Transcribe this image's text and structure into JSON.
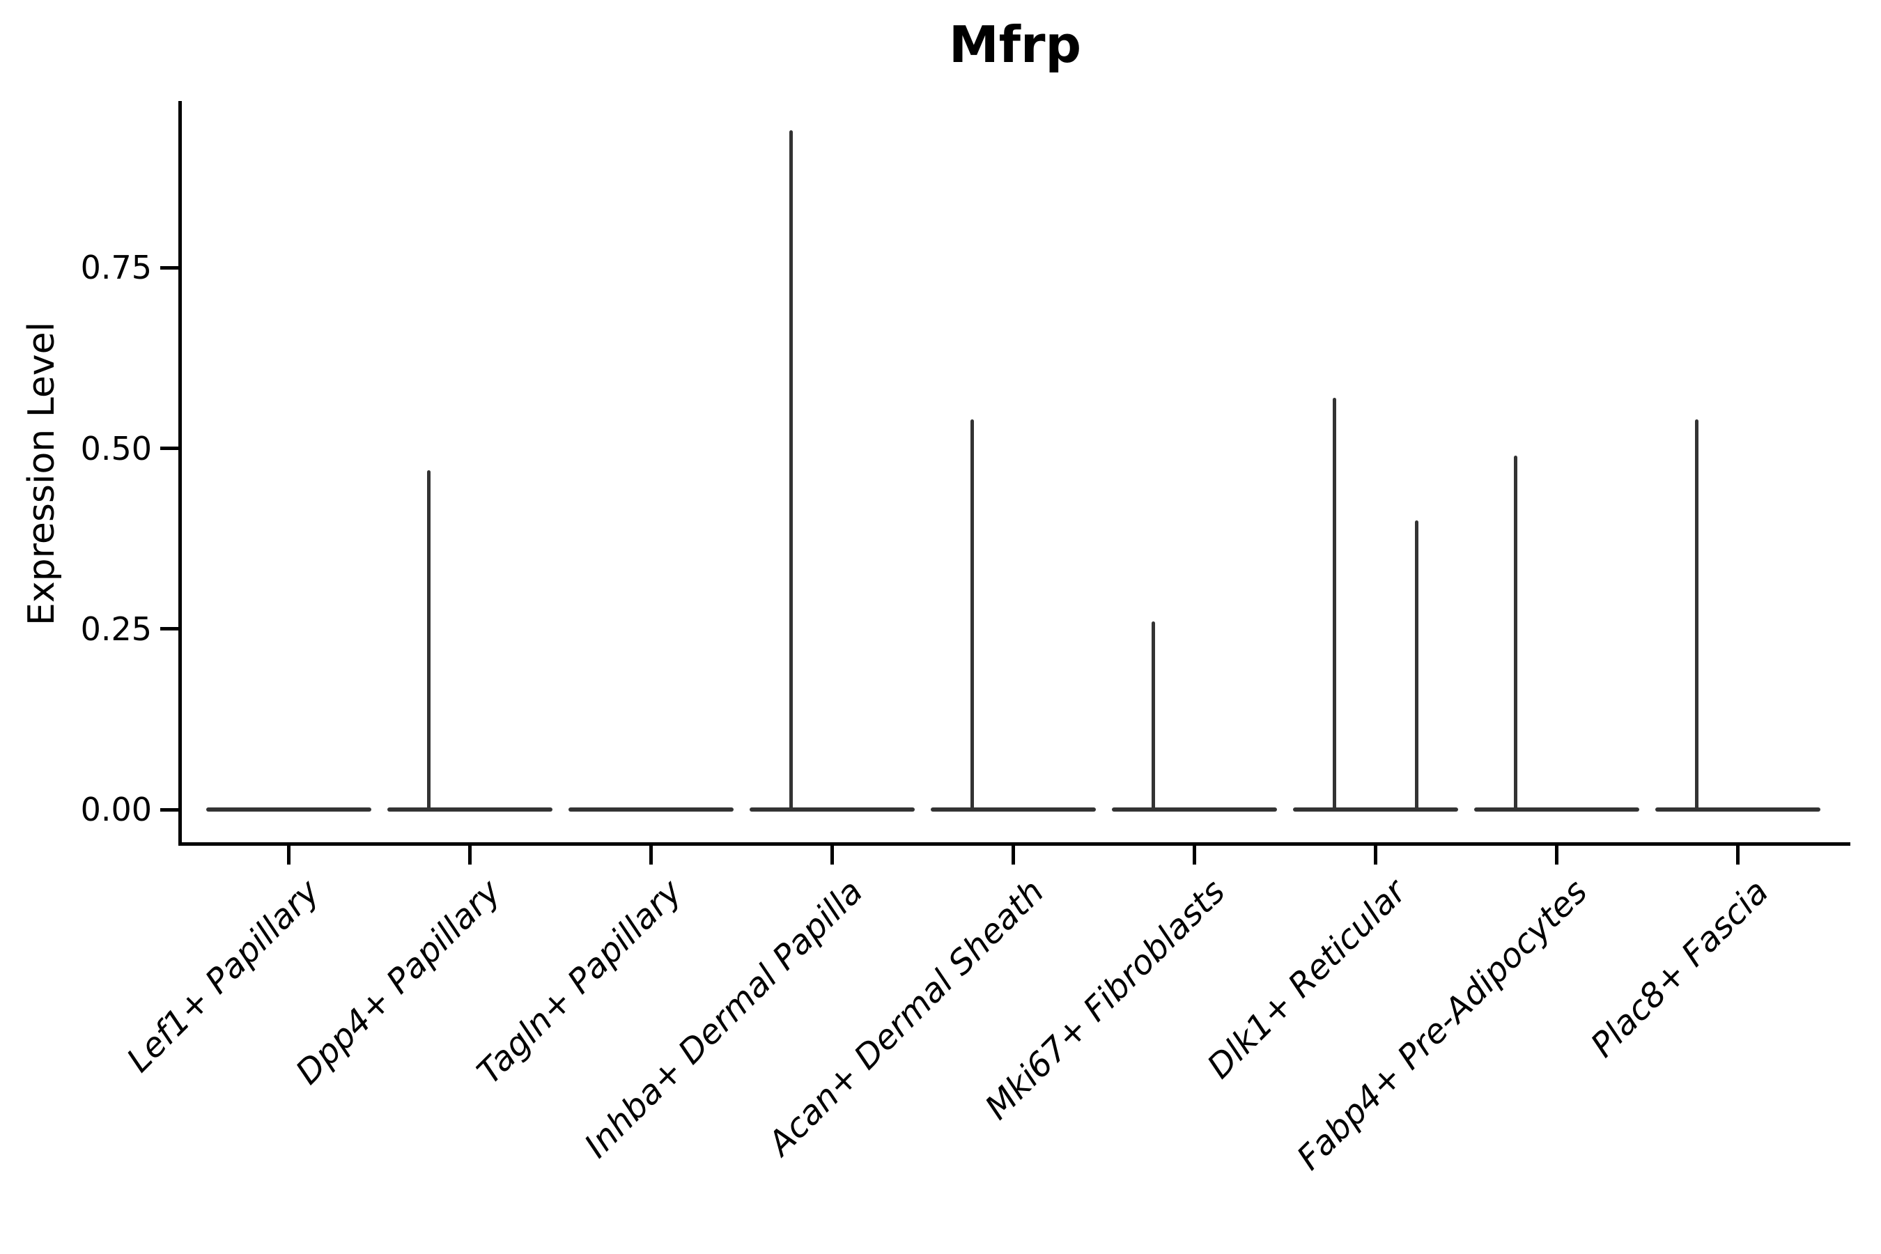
{
  "figure": {
    "title": "Mfrp",
    "y_axis": {
      "label": "Expression Level",
      "tick_labels": [
        "0.00",
        "0.25",
        "0.50",
        "0.75"
      ]
    }
  },
  "chart_data": {
    "type": "violin",
    "title": "Mfrp",
    "xlabel": "",
    "ylabel": "Expression Level",
    "ylim": [
      -0.05,
      0.98
    ],
    "yticks": [
      0,
      0.25,
      0.5,
      0.75
    ],
    "ytick_labels": [
      "0.00",
      "0.25",
      "0.50",
      "0.75"
    ],
    "grid": false,
    "legend": "none",
    "categories": [
      "Lef1+ Papillary",
      "Dpp4+ Papillary",
      "Tagln+ Papillary",
      "Inhba+ Dermal Papilla",
      "Acan+ Dermal Sheath",
      "Mki67+ Fibroblasts",
      "Dlk1+ Reticular",
      "Fabp4+ Pre-Adipocytes",
      "Plac8+ Fascia"
    ],
    "distribution_note": "Each violin is collapsed flat at 0 expression with a thin vertical density spike reaching the maximum expression value; two dodged violins per category (left/right of tick).",
    "series": [
      {
        "name": "left violin (dodged group 1)",
        "position": "left",
        "spike_max": [
          0,
          0.47,
          0,
          0.94,
          0.54,
          0.26,
          0.57,
          0.49,
          0.54
        ]
      },
      {
        "name": "right violin (dodged group 2)",
        "position": "right",
        "spike_max": [
          0,
          0,
          0,
          0,
          0,
          0,
          0.4,
          0,
          0
        ]
      }
    ],
    "colors": {
      "violin": "#333333",
      "axis": "#000000",
      "text": "#000000",
      "background": "#ffffff"
    }
  }
}
